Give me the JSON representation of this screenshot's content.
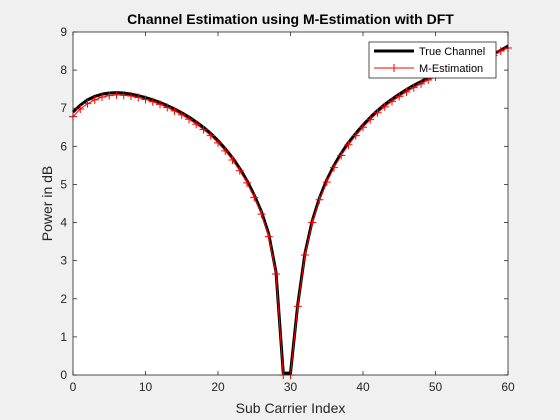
{
  "chart_data": {
    "type": "line",
    "title": "Channel Estimation using M-Estimation with DFT",
    "xlabel": "Sub Carrier Index",
    "ylabel": "Power in dB",
    "xlim": [
      0,
      60
    ],
    "ylim": [
      0,
      9
    ],
    "xticks": [
      0,
      10,
      20,
      30,
      40,
      50,
      60
    ],
    "yticks": [
      0,
      1,
      2,
      3,
      4,
      5,
      6,
      7,
      8,
      9
    ],
    "grid": false,
    "legend_position": "top-right",
    "x": [
      0,
      1,
      2,
      3,
      4,
      5,
      6,
      7,
      8,
      9,
      10,
      11,
      12,
      13,
      14,
      15,
      16,
      17,
      18,
      19,
      20,
      21,
      22,
      23,
      24,
      25,
      26,
      27,
      28,
      29,
      30,
      31,
      32,
      33,
      34,
      35,
      36,
      37,
      38,
      39,
      40,
      41,
      42,
      43,
      44,
      45,
      46,
      47,
      48,
      49,
      50,
      51,
      52,
      53,
      54,
      55,
      56,
      57,
      58,
      59,
      60
    ],
    "series": [
      {
        "name": "True Channel",
        "color": "#000000",
        "style": "solid-thick",
        "values": [
          6.9,
          7.08,
          7.22,
          7.31,
          7.37,
          7.4,
          7.41,
          7.4,
          7.37,
          7.33,
          7.28,
          7.22,
          7.15,
          7.07,
          6.98,
          6.88,
          6.77,
          6.64,
          6.5,
          6.34,
          6.15,
          5.94,
          5.7,
          5.42,
          5.1,
          4.72,
          4.28,
          3.7,
          2.7,
          0.05,
          0.05,
          1.85,
          3.2,
          4.05,
          4.65,
          5.12,
          5.5,
          5.82,
          6.1,
          6.34,
          6.56,
          6.76,
          6.94,
          7.1,
          7.24,
          7.37,
          7.49,
          7.6,
          7.7,
          7.8,
          7.88,
          7.96,
          8.04,
          8.11,
          8.18,
          8.24,
          8.3,
          8.36,
          8.42,
          8.52,
          8.63
        ]
      },
      {
        "name": "M-Estimation",
        "color": "#ff0000",
        "style": "solid-plus",
        "values": [
          6.78,
          6.98,
          7.12,
          7.22,
          7.29,
          7.33,
          7.35,
          7.34,
          7.32,
          7.28,
          7.23,
          7.17,
          7.1,
          7.02,
          6.93,
          6.83,
          6.71,
          6.58,
          6.44,
          6.28,
          6.09,
          5.88,
          5.64,
          5.36,
          5.04,
          4.66,
          4.22,
          3.63,
          2.65,
          0.0,
          0.0,
          1.8,
          3.15,
          4.0,
          4.6,
          5.06,
          5.44,
          5.76,
          6.04,
          6.28,
          6.5,
          6.7,
          6.88,
          7.04,
          7.18,
          7.31,
          7.43,
          7.54,
          7.64,
          7.74,
          7.82,
          7.9,
          7.98,
          8.05,
          8.12,
          8.18,
          8.24,
          8.3,
          8.38,
          8.5,
          8.58
        ]
      }
    ]
  }
}
